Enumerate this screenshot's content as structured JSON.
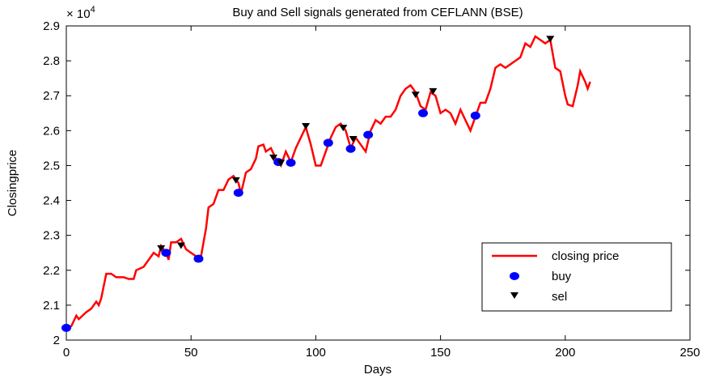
{
  "chart_data": {
    "type": "line",
    "title": "Buy and Sell signals generated from CEFLANN (BSE)",
    "x_label": "Days",
    "y_label": "Closingprice",
    "y_multiplier": {
      "base": "× 10",
      "exponent": "4"
    },
    "xlim": [
      0,
      250
    ],
    "xticks": [
      0,
      50,
      100,
      150,
      200,
      250
    ],
    "ylim": [
      2,
      2.9
    ],
    "yticks": [
      2,
      2.1,
      2.2,
      2.3,
      2.4,
      2.5,
      2.6,
      2.7,
      2.8,
      2.9
    ],
    "legend": "lower right",
    "series": [
      {
        "name": "closing price",
        "color": "#ff0000",
        "marker": "line",
        "x": [
          0,
          2,
          4,
          5,
          8,
          10,
          12,
          13,
          14,
          16,
          18,
          20,
          23,
          25,
          27,
          28,
          31,
          33,
          35,
          37,
          38,
          40,
          41,
          42,
          44,
          46,
          48,
          50,
          52,
          54,
          56,
          57,
          59,
          61,
          63,
          65,
          67,
          69,
          70,
          72,
          74,
          76,
          77,
          79,
          80,
          82,
          84,
          86,
          88,
          90,
          92,
          94,
          96,
          98,
          100,
          102,
          104,
          106,
          108,
          110,
          112,
          114,
          116,
          118,
          120,
          122,
          124,
          126,
          128,
          130,
          132,
          134,
          136,
          138,
          140,
          142,
          144,
          146,
          148,
          150,
          152,
          154,
          156,
          158,
          160,
          162,
          164,
          166,
          168,
          170,
          172,
          174,
          176,
          178,
          180,
          182,
          184,
          186,
          188,
          190,
          192,
          194,
          196,
          198,
          200,
          201,
          203,
          205,
          206,
          208,
          209,
          210
        ],
        "values": [
          2.03,
          2.04,
          2.07,
          2.06,
          2.08,
          2.09,
          2.11,
          2.1,
          2.12,
          2.19,
          2.19,
          2.18,
          2.18,
          2.175,
          2.175,
          2.2,
          2.21,
          2.23,
          2.25,
          2.24,
          2.27,
          2.25,
          2.23,
          2.28,
          2.28,
          2.29,
          2.26,
          2.25,
          2.24,
          2.24,
          2.32,
          2.38,
          2.39,
          2.43,
          2.43,
          2.46,
          2.47,
          2.45,
          2.42,
          2.48,
          2.49,
          2.52,
          2.555,
          2.56,
          2.54,
          2.55,
          2.52,
          2.5,
          2.54,
          2.51,
          2.55,
          2.58,
          2.61,
          2.56,
          2.5,
          2.5,
          2.54,
          2.58,
          2.61,
          2.62,
          2.6,
          2.55,
          2.58,
          2.56,
          2.54,
          2.6,
          2.63,
          2.62,
          2.64,
          2.64,
          2.66,
          2.7,
          2.72,
          2.73,
          2.71,
          2.67,
          2.66,
          2.71,
          2.7,
          2.65,
          2.66,
          2.65,
          2.62,
          2.66,
          2.63,
          2.6,
          2.64,
          2.68,
          2.68,
          2.72,
          2.78,
          2.79,
          2.78,
          2.79,
          2.8,
          2.81,
          2.85,
          2.84,
          2.87,
          2.86,
          2.85,
          2.86,
          2.78,
          2.77,
          2.7,
          2.675,
          2.67,
          2.73,
          2.77,
          2.74,
          2.72,
          2.74
        ]
      },
      {
        "name": "buy",
        "color": "#0000ff",
        "marker": "circle",
        "x": [
          0,
          40,
          53,
          69,
          85,
          90,
          105,
          114,
          121,
          143,
          164
        ],
        "values": [
          2.035,
          2.25,
          2.233,
          2.422,
          2.51,
          2.508,
          2.565,
          2.548,
          2.588,
          2.65,
          2.643
        ]
      },
      {
        "name": "sel",
        "color": "#000000",
        "marker": "triangle-down",
        "x": [
          38,
          46,
          68,
          83,
          86,
          96,
          111,
          115,
          140,
          147,
          194
        ],
        "values": [
          2.26,
          2.268,
          2.455,
          2.52,
          2.505,
          2.61,
          2.605,
          2.573,
          2.7,
          2.71,
          2.86
        ]
      }
    ]
  }
}
